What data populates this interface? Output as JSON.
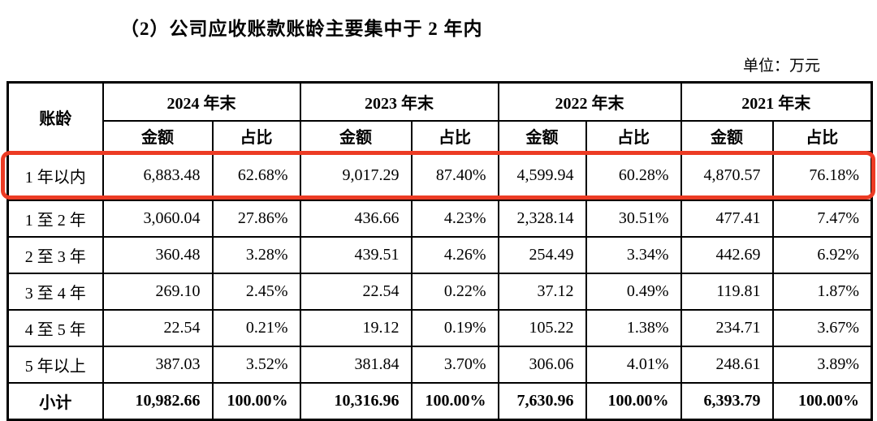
{
  "page": {
    "title": "（2）公司应收账款账龄主要集中于 2 年内",
    "unit_label": "单位：万元"
  },
  "table": {
    "corner_header": "账龄",
    "year_headers": [
      "2024 年末",
      "2023 年末",
      "2022 年末",
      "2021 年末"
    ],
    "sub_headers": [
      "金额",
      "占比"
    ],
    "highlight_color": "#ec3b24",
    "rows": [
      {
        "cells": [
          "1 年以内",
          "6,883.48",
          "62.68%",
          "9,017.29",
          "87.40%",
          "4,599.94",
          "60.28%",
          "4,870.57",
          "76.18%"
        ],
        "highlight": true,
        "bold": false
      },
      {
        "cells": [
          "1 至 2 年",
          "3,060.04",
          "27.86%",
          "436.66",
          "4.23%",
          "2,328.14",
          "30.51%",
          "477.41",
          "7.47%"
        ],
        "highlight": false,
        "bold": false
      },
      {
        "cells": [
          "2 至 3 年",
          "360.48",
          "3.28%",
          "439.51",
          "4.26%",
          "254.49",
          "3.34%",
          "442.69",
          "6.92%"
        ],
        "highlight": false,
        "bold": false
      },
      {
        "cells": [
          "3 至 4 年",
          "269.10",
          "2.45%",
          "22.54",
          "0.22%",
          "37.12",
          "0.49%",
          "119.81",
          "1.87%"
        ],
        "highlight": false,
        "bold": false
      },
      {
        "cells": [
          "4 至 5 年",
          "22.54",
          "0.21%",
          "19.12",
          "0.19%",
          "105.22",
          "1.38%",
          "234.71",
          "3.67%"
        ],
        "highlight": false,
        "bold": false
      },
      {
        "cells": [
          "5 年以上",
          "387.03",
          "3.52%",
          "381.84",
          "3.70%",
          "306.06",
          "4.01%",
          "248.61",
          "3.89%"
        ],
        "highlight": false,
        "bold": false
      },
      {
        "cells": [
          "小计",
          "10,982.66",
          "100.00%",
          "10,316.96",
          "100.00%",
          "7,630.96",
          "100.00%",
          "6,393.79",
          "100.00%"
        ],
        "highlight": false,
        "bold": true
      }
    ]
  }
}
